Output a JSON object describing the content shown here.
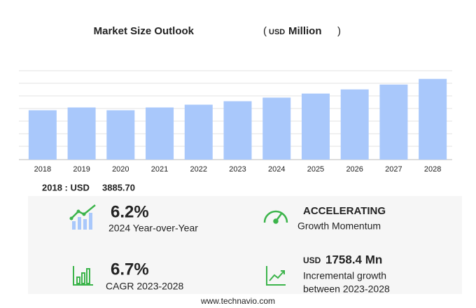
{
  "chart_data": {
    "type": "bar",
    "title": "Market Size Outlook",
    "subtitle_parts": [
      "(",
      "USD",
      "Million",
      ")"
    ],
    "categories": [
      "2018",
      "2019",
      "2020",
      "2021",
      "2022",
      "2023",
      "2024",
      "2025",
      "2026",
      "2027",
      "2028"
    ],
    "values": [
      3885.7,
      4105,
      3886,
      4105,
      4324,
      4597,
      4880,
      5200,
      5527,
      5910,
      6356
    ],
    "color": "#a9c8fb",
    "ylim": [
      0,
      7000
    ],
    "grid": true
  },
  "summary": {
    "base_label": "2018 : USD",
    "base_value": "3885.70",
    "cards": [
      {
        "headline": "6.2%",
        "caption": [
          "2024 Year-over-Year"
        ]
      },
      {
        "headline": "ACCELERATING",
        "caption": [
          "Growth Momentum"
        ]
      },
      {
        "headline": "6.7%",
        "caption": [
          "CAGR 2023-2028"
        ]
      },
      {
        "headline_unit": "USD",
        "headline": "1758.4 Mn",
        "caption": [
          "Incremental growth",
          "between 2023-2028"
        ]
      }
    ]
  },
  "footer": "www.technavio.com"
}
